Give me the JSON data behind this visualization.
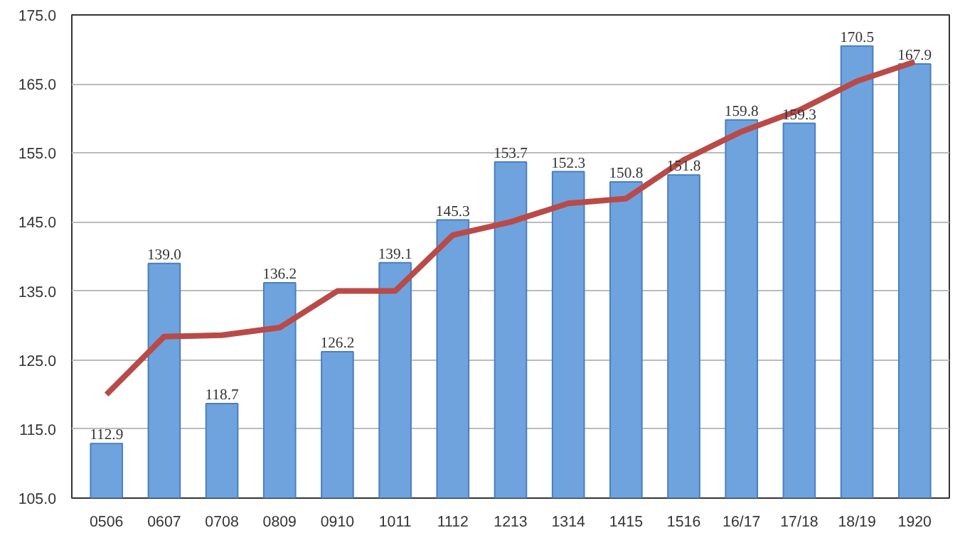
{
  "chart_data": {
    "type": "bar",
    "categories": [
      "0506",
      "0607",
      "0708",
      "0809",
      "0910",
      "1011",
      "1112",
      "1213",
      "1314",
      "1415",
      "1516",
      "16/17",
      "17/18",
      "18/19",
      "1920"
    ],
    "series": [
      {
        "color": "#6fa3de",
        "values": [
          112.9,
          139.0,
          118.7,
          136.2,
          126.2,
          139.1,
          145.3,
          153.7,
          152.3,
          150.8,
          151.8,
          159.8,
          159.3,
          170.5,
          167.9
        ],
        "value_labels": [
          "112.9",
          "139.0",
          "118.7",
          "136.2",
          "126.2",
          "139.1",
          "145.3",
          "153.7",
          "152.3",
          "150.8",
          "151.8",
          "159.8",
          "159.3",
          "170.5",
          "167.9"
        ]
      },
      {
        "type": "line",
        "color": "#b94a48",
        "values": [
          120.0,
          128.4,
          128.6,
          129.7,
          135.0,
          135.0,
          143.1,
          145.0,
          147.7,
          148.4,
          154.0,
          158.1,
          161.2,
          165.4,
          168.2
        ]
      }
    ],
    "ylim": [
      105,
      175
    ],
    "yticks": [
      {
        "value": 105,
        "label": "105.0"
      },
      {
        "value": 115,
        "label": "115.0"
      },
      {
        "value": 125,
        "label": "125.0"
      },
      {
        "value": 135,
        "label": "135.0"
      },
      {
        "value": 145,
        "label": "145.0"
      },
      {
        "value": 155,
        "label": "155.0"
      },
      {
        "value": 165,
        "label": "165.0"
      },
      {
        "value": 175,
        "label": "175.0"
      }
    ],
    "grid": "y"
  }
}
